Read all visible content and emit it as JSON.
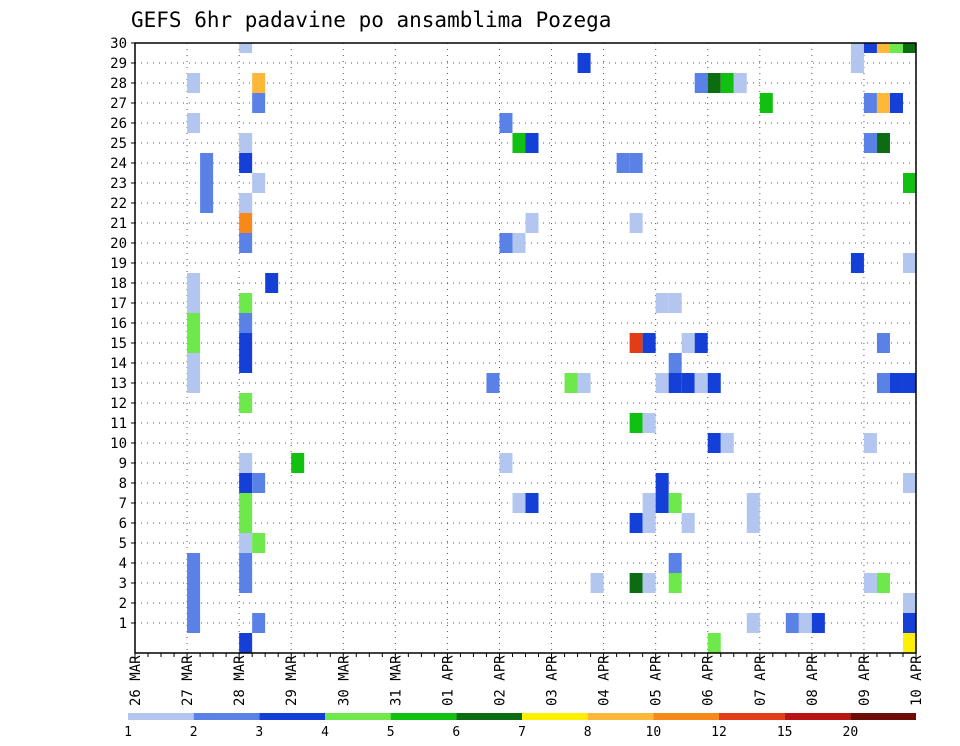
{
  "chart_data": {
    "type": "heatmap",
    "title": "GEFS 6hr padavine po ansamblima Pozega",
    "xlabel": "",
    "ylabel": "",
    "x_tick_labels": [
      "26 MAR",
      "27 MAR",
      "28 MAR",
      "29 MAR",
      "30 MAR",
      "31 MAR",
      "01 APR",
      "02 APR",
      "03 APR",
      "04 APR",
      "05 APR",
      "06 APR",
      "07 APR",
      "08 APR",
      "09 APR",
      "10 APR"
    ],
    "y_tick_labels": [
      "1",
      "2",
      "3",
      "4",
      "5",
      "6",
      "7",
      "8",
      "9",
      "10",
      "11",
      "12",
      "13",
      "14",
      "15",
      "16",
      "17",
      "18",
      "19",
      "20",
      "21",
      "22",
      "23",
      "24",
      "25",
      "26",
      "27",
      "28",
      "29",
      "30"
    ],
    "x_unit": "6-hour step from 26 MAR 00Z",
    "xlim": [
      0,
      60
    ],
    "ylim": [
      0,
      30
    ],
    "grid": true,
    "color_levels": [
      "1",
      "2",
      "3",
      "4",
      "5",
      "6",
      "7",
      "8",
      "10",
      "12",
      "15",
      "20"
    ],
    "colors": [
      "#b3c6f0",
      "#5a82e6",
      "#1540d8",
      "#6ee84a",
      "#12c012",
      "#0c6c12",
      "#fff000",
      "#fdb83a",
      "#f7891a",
      "#e23d16",
      "#b81512",
      "#6e0c08"
    ],
    "cells": [
      [
        8,
        0,
        2
      ],
      [
        44,
        0,
        3
      ],
      [
        59,
        0,
        6
      ],
      [
        4,
        1,
        1
      ],
      [
        4,
        2,
        1
      ],
      [
        9,
        1,
        1
      ],
      [
        47,
        1,
        0
      ],
      [
        50,
        1,
        1
      ],
      [
        51,
        1,
        0
      ],
      [
        52,
        1,
        2
      ],
      [
        59,
        1,
        2
      ],
      [
        59,
        2,
        0
      ],
      [
        4,
        3,
        1
      ],
      [
        4,
        4,
        1
      ],
      [
        35,
        3,
        0
      ],
      [
        38,
        3,
        5
      ],
      [
        39,
        3,
        0
      ],
      [
        41,
        3,
        3
      ],
      [
        56,
        3,
        0
      ],
      [
        57,
        3,
        3
      ],
      [
        8,
        3,
        1
      ],
      [
        8,
        4,
        1
      ],
      [
        41,
        4,
        1
      ],
      [
        8,
        5,
        0
      ],
      [
        9,
        5,
        3
      ],
      [
        8,
        6,
        3
      ],
      [
        38,
        6,
        2
      ],
      [
        39,
        6,
        0
      ],
      [
        42,
        6,
        0
      ],
      [
        8,
        7,
        3
      ],
      [
        8,
        8,
        2
      ],
      [
        29,
        7,
        0
      ],
      [
        30,
        7,
        2
      ],
      [
        39,
        7,
        0
      ],
      [
        40,
        7,
        2
      ],
      [
        41,
        7,
        3
      ],
      [
        40,
        8,
        2
      ],
      [
        47,
        6,
        0
      ],
      [
        47,
        7,
        0
      ],
      [
        9,
        8,
        1
      ],
      [
        59,
        8,
        0
      ],
      [
        8,
        9,
        0
      ],
      [
        12,
        9,
        4
      ],
      [
        28,
        9,
        0
      ],
      [
        44,
        10,
        2
      ],
      [
        45,
        10,
        0
      ],
      [
        56,
        10,
        0
      ],
      [
        38,
        11,
        4
      ],
      [
        39,
        11,
        0
      ],
      [
        8,
        12,
        3
      ],
      [
        4,
        13,
        0
      ],
      [
        4,
        14,
        0
      ],
      [
        27,
        13,
        1
      ],
      [
        33,
        13,
        3
      ],
      [
        34,
        13,
        0
      ],
      [
        40,
        13,
        0
      ],
      [
        41,
        13,
        2
      ],
      [
        42,
        13,
        2
      ],
      [
        43,
        13,
        0
      ],
      [
        44,
        13,
        2
      ],
      [
        57,
        13,
        1
      ],
      [
        58,
        13,
        2
      ],
      [
        59,
        13,
        2
      ],
      [
        41,
        14,
        1
      ],
      [
        8,
        14,
        2
      ],
      [
        8,
        15,
        2
      ],
      [
        4,
        15,
        3
      ],
      [
        4,
        16,
        3
      ],
      [
        8,
        16,
        1
      ],
      [
        38,
        15,
        9
      ],
      [
        39,
        15,
        2
      ],
      [
        42,
        15,
        0
      ],
      [
        43,
        15,
        2
      ],
      [
        57,
        15,
        1
      ],
      [
        4,
        17,
        0
      ],
      [
        4,
        18,
        0
      ],
      [
        8,
        17,
        3
      ],
      [
        10,
        18,
        2
      ],
      [
        40,
        17,
        0
      ],
      [
        41,
        17,
        0
      ],
      [
        55,
        19,
        2
      ],
      [
        59,
        19,
        0
      ],
      [
        8,
        20,
        1
      ],
      [
        28,
        20,
        1
      ],
      [
        29,
        20,
        0
      ],
      [
        8,
        21,
        8
      ],
      [
        30,
        21,
        0
      ],
      [
        38,
        21,
        0
      ],
      [
        8,
        22,
        0
      ],
      [
        9,
        23,
        0
      ],
      [
        5,
        22,
        1
      ],
      [
        5,
        23,
        1
      ],
      [
        5,
        24,
        1
      ],
      [
        59,
        23,
        4
      ],
      [
        8,
        24,
        2
      ],
      [
        37,
        24,
        1
      ],
      [
        38,
        24,
        1
      ],
      [
        8,
        25,
        0
      ],
      [
        29,
        25,
        4
      ],
      [
        30,
        25,
        2
      ],
      [
        56,
        25,
        1
      ],
      [
        57,
        25,
        5
      ],
      [
        4,
        26,
        0
      ],
      [
        28,
        26,
        1
      ],
      [
        9,
        27,
        1
      ],
      [
        48,
        27,
        4
      ],
      [
        56,
        27,
        1
      ],
      [
        57,
        27,
        7
      ],
      [
        58,
        27,
        2
      ],
      [
        4,
        28,
        0
      ],
      [
        9,
        28,
        7
      ],
      [
        43,
        28,
        1
      ],
      [
        44,
        28,
        5
      ],
      [
        45,
        28,
        4
      ],
      [
        46,
        28,
        0
      ],
      [
        34,
        29,
        2
      ],
      [
        55,
        29,
        0
      ],
      [
        8,
        30,
        0
      ],
      [
        55,
        30,
        0
      ],
      [
        56,
        30,
        2
      ],
      [
        57,
        30,
        7
      ],
      [
        58,
        30,
        3
      ],
      [
        59,
        30,
        5
      ]
    ]
  }
}
